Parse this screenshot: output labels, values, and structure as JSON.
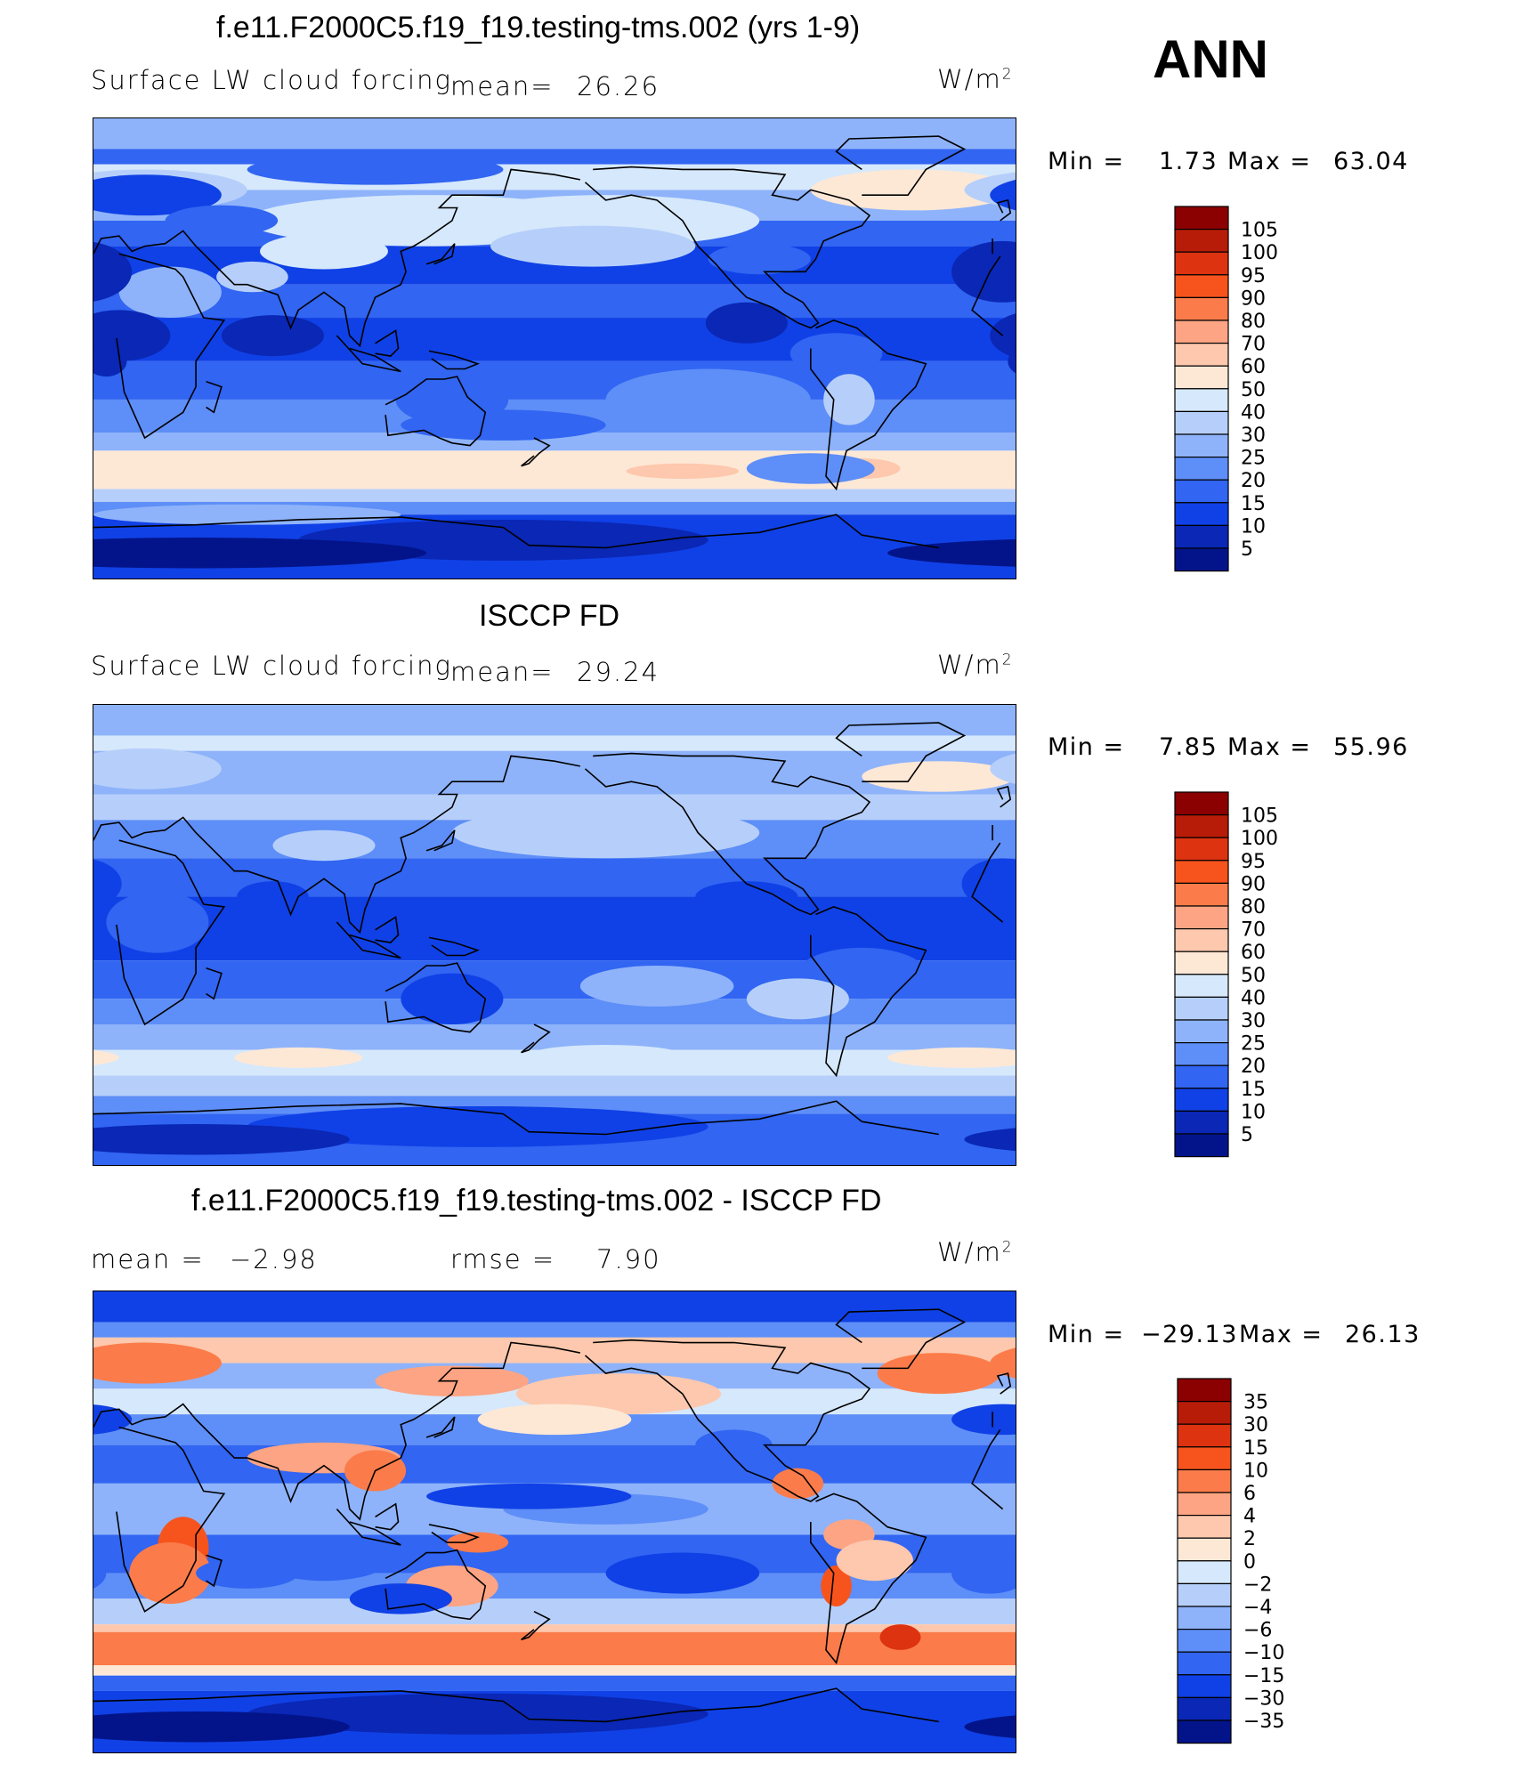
{
  "season": "ANN",
  "units_base": "W/m",
  "units_exp": "2",
  "panels": [
    {
      "id": "model",
      "title": "f.e11.F2000C5.f19_f19.testing-tms.002 (yrs 1-9)",
      "variable": "Surface LW cloud forcing",
      "mean_label": "mean=",
      "mean_value": "26.26",
      "min_label": "Min =",
      "min_value": "1.73",
      "max_label": "Max =",
      "max_value": "63.04",
      "colorbar": {
        "levels": [
          "105",
          "100",
          "95",
          "90",
          "80",
          "70",
          "60",
          "50",
          "40",
          "30",
          "25",
          "20",
          "15",
          "10",
          "5"
        ],
        "colors": [
          "#8b0000",
          "#b71c08",
          "#dd3310",
          "#f7541d",
          "#fb7c4a",
          "#fca483",
          "#fdc8ad",
          "#fde8d6",
          "#d6e8fb",
          "#b6cffa",
          "#8eb3fa",
          "#5e8ef7",
          "#3165f2",
          "#1041e6",
          "#0a27b5",
          "#03148a"
        ]
      }
    },
    {
      "id": "obs",
      "title": "ISCCP FD",
      "variable": "Surface LW cloud forcing",
      "mean_label": "mean=",
      "mean_value": "29.24",
      "min_label": "Min =",
      "min_value": "7.85",
      "max_label": "Max =",
      "max_value": "55.96",
      "colorbar": {
        "levels": [
          "105",
          "100",
          "95",
          "90",
          "80",
          "70",
          "60",
          "50",
          "40",
          "30",
          "25",
          "20",
          "15",
          "10",
          "5"
        ],
        "colors": [
          "#8b0000",
          "#b71c08",
          "#dd3310",
          "#f7541d",
          "#fb7c4a",
          "#fca483",
          "#fdc8ad",
          "#fde8d6",
          "#d6e8fb",
          "#b6cffa",
          "#8eb3fa",
          "#5e8ef7",
          "#3165f2",
          "#1041e6",
          "#0a27b5",
          "#03148a"
        ]
      }
    },
    {
      "id": "diff",
      "title": "f.e11.F2000C5.f19_f19.testing-tms.002 - ISCCP FD",
      "mean_label": "mean =",
      "mean_value": "−2.98",
      "rmse_label": "rmse =",
      "rmse_value": "7.90",
      "min_label": "Min =",
      "min_value": "−29.13",
      "max_label": "Max =",
      "max_value": "26.13",
      "colorbar": {
        "levels": [
          "35",
          "30",
          "15",
          "10",
          "6",
          "4",
          "2",
          "0",
          "−2",
          "−4",
          "−6",
          "−10",
          "−15",
          "−30",
          "−35"
        ],
        "colors": [
          "#8b0000",
          "#b71c08",
          "#dd3310",
          "#f7541d",
          "#fb7c4a",
          "#fca483",
          "#fdc8ad",
          "#fde8d6",
          "#d6e8fb",
          "#b6cffa",
          "#8eb3fa",
          "#5e8ef7",
          "#3165f2",
          "#1041e6",
          "#0a27b5",
          "#03148a"
        ]
      }
    }
  ],
  "chart_data": [
    {
      "type": "heatmap",
      "title": "f.e11.F2000C5.f19_f19.testing-tms.002 (yrs 1-9)",
      "subtitle": "Surface LW cloud forcing",
      "units": "W/m2",
      "mean": 26.26,
      "min": 1.73,
      "max": 63.04,
      "contour_levels": [
        5,
        10,
        15,
        20,
        25,
        30,
        40,
        50,
        60,
        70,
        80,
        90,
        95,
        100,
        105
      ],
      "lon_range": [
        0,
        360
      ],
      "lat_range": [
        -90,
        90
      ],
      "zonal_profile_approx": [
        {
          "lat": 80,
          "value": 20
        },
        {
          "lat": 65,
          "value": 45
        },
        {
          "lat": 50,
          "value": 30
        },
        {
          "lat": 30,
          "value": 15
        },
        {
          "lat": 10,
          "value": 12
        },
        {
          "lat": -10,
          "value": 12
        },
        {
          "lat": -30,
          "value": 15
        },
        {
          "lat": -48,
          "value": 55
        },
        {
          "lat": -60,
          "value": 30
        },
        {
          "lat": -75,
          "value": 8
        }
      ]
    },
    {
      "type": "heatmap",
      "title": "ISCCP FD",
      "subtitle": "Surface LW cloud forcing",
      "units": "W/m2",
      "mean": 29.24,
      "min": 7.85,
      "max": 55.96,
      "contour_levels": [
        5,
        10,
        15,
        20,
        25,
        30,
        40,
        50,
        60,
        70,
        80,
        90,
        95,
        100,
        105
      ],
      "lon_range": [
        0,
        360
      ],
      "lat_range": [
        -90,
        90
      ],
      "zonal_profile_approx": [
        {
          "lat": 80,
          "value": 35
        },
        {
          "lat": 65,
          "value": 30
        },
        {
          "lat": 50,
          "value": 30
        },
        {
          "lat": 30,
          "value": 22
        },
        {
          "lat": 10,
          "value": 18
        },
        {
          "lat": -10,
          "value": 18
        },
        {
          "lat": -30,
          "value": 27
        },
        {
          "lat": -48,
          "value": 45
        },
        {
          "lat": -60,
          "value": 40
        },
        {
          "lat": -75,
          "value": 15
        }
      ]
    },
    {
      "type": "heatmap",
      "title": "f.e11.F2000C5.f19_f19.testing-tms.002 - ISCCP FD",
      "units": "W/m2",
      "mean": -2.98,
      "rmse": 7.9,
      "min": -29.13,
      "max": 26.13,
      "contour_levels": [
        -35,
        -30,
        -15,
        -10,
        -6,
        -4,
        -2,
        0,
        2,
        4,
        6,
        10,
        15,
        30,
        35
      ],
      "lon_range": [
        0,
        360
      ],
      "lat_range": [
        -90,
        90
      ],
      "zonal_profile_approx": [
        {
          "lat": 80,
          "value": -10
        },
        {
          "lat": 65,
          "value": 8
        },
        {
          "lat": 50,
          "value": 2
        },
        {
          "lat": 30,
          "value": -6
        },
        {
          "lat": 10,
          "value": -5
        },
        {
          "lat": -10,
          "value": -5
        },
        {
          "lat": -30,
          "value": -8
        },
        {
          "lat": -45,
          "value": 8
        },
        {
          "lat": -50,
          "value": 12
        },
        {
          "lat": -60,
          "value": -10
        },
        {
          "lat": -75,
          "value": -10
        }
      ]
    }
  ]
}
